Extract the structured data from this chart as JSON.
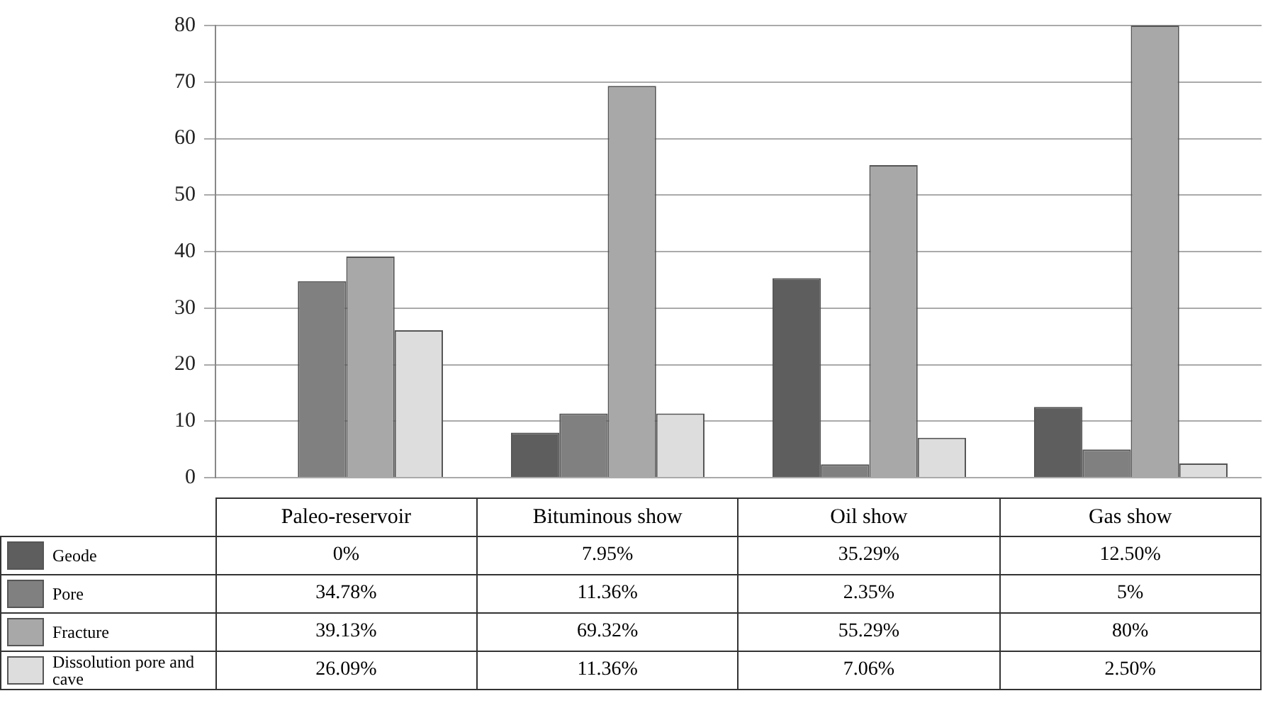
{
  "chart_data": {
    "type": "bar",
    "categories": [
      "Paleo-reservoir",
      "Bituminous show",
      "Oil show",
      "Gas show"
    ],
    "series": [
      {
        "name": "Geode",
        "color": "#5e5e5e",
        "values": [
          0,
          7.95,
          35.29,
          12.5
        ],
        "value_labels": [
          "0%",
          "7.95%",
          "35.29%",
          "12.50%"
        ]
      },
      {
        "name": "Pore",
        "color": "#808080",
        "values": [
          34.78,
          11.36,
          2.35,
          5
        ],
        "value_labels": [
          "34.78%",
          "11.36%",
          "2.35%",
          "5%"
        ]
      },
      {
        "name": "Fracture",
        "color": "#a8a8a8",
        "values": [
          39.13,
          69.32,
          55.29,
          80
        ],
        "value_labels": [
          "39.13%",
          "69.32%",
          "55.29%",
          "80%"
        ]
      },
      {
        "name": "Dissolution pore and cave",
        "color": "#dddddd",
        "values": [
          26.09,
          11.36,
          7.06,
          2.5
        ],
        "value_labels": [
          "26.09%",
          "11.36%",
          "7.06%",
          "2.50%"
        ]
      }
    ],
    "ylim": [
      0,
      80
    ],
    "yticks": [
      0,
      10,
      20,
      30,
      40,
      50,
      60,
      70,
      80
    ],
    "grid": "y",
    "legend": "bottom"
  }
}
